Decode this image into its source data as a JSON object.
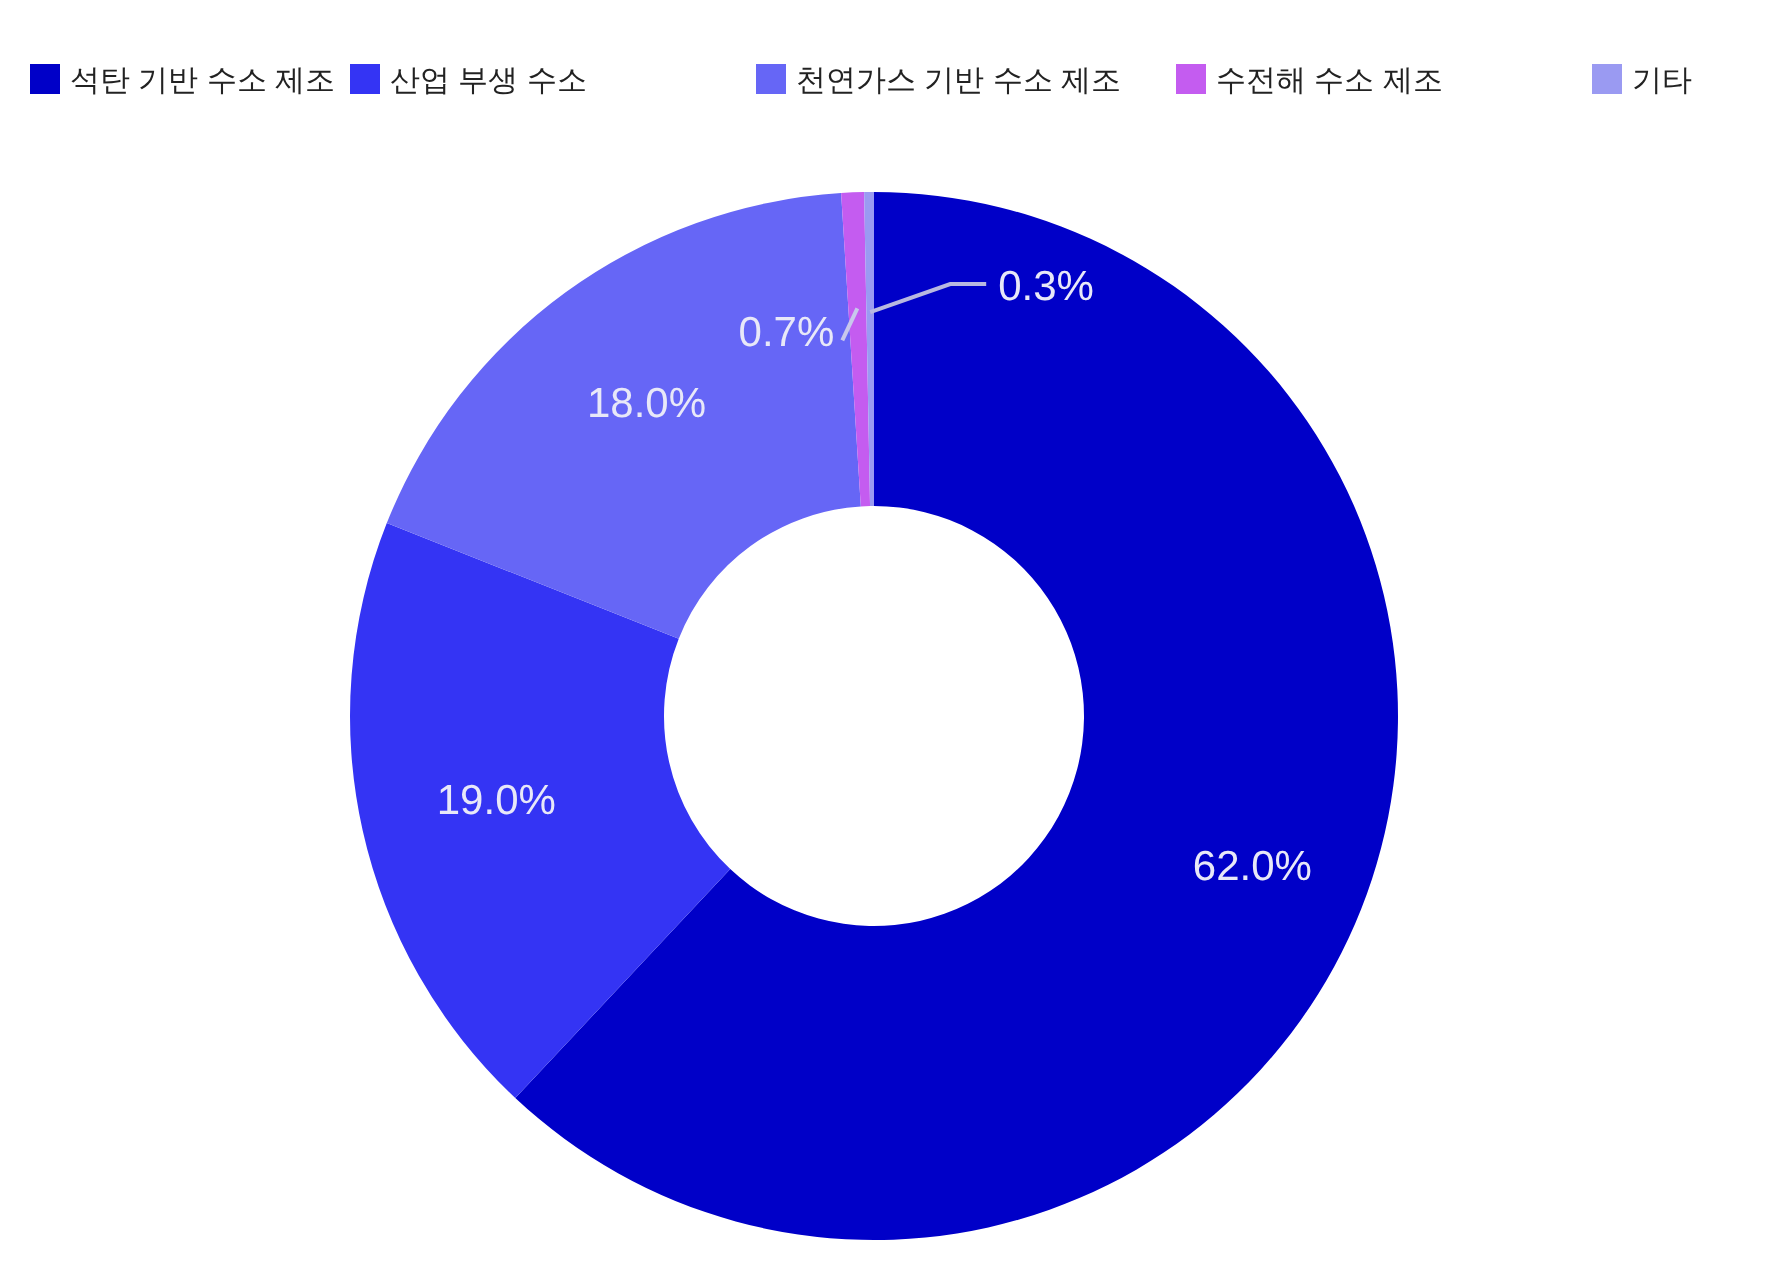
{
  "chart_data": {
    "type": "donut",
    "categories": [
      "석탄 기반 수소 제조",
      "산업 부생 수소",
      "천연가스 기반 수소 제조",
      "수전해 수소 제조",
      "기타"
    ],
    "values": [
      62.0,
      19.0,
      18.0,
      0.7,
      0.3
    ],
    "colors": [
      "#0000c8",
      "#3434f4",
      "#6666f6",
      "#c45cf0",
      "#9a9af2"
    ],
    "value_labels": [
      "62.0%",
      "19.0%",
      "18.0%",
      "0.7%",
      "0.3%"
    ],
    "legend": "top"
  }
}
